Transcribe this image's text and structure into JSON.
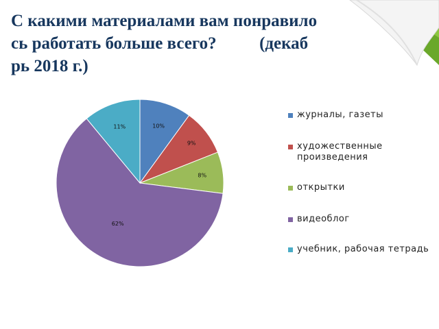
{
  "title_lines": [
    "С какими материалами вам понравило",
    "сь работать больше всего?          (декаб",
    "рь 2018 г.)"
  ],
  "chart_data": {
    "type": "pie",
    "title": "С какими материалами вам понравилось работать больше всего? (декабрь 2018 г.)",
    "categories": [
      "журналы, газеты",
      "художественные произведения",
      "открытки",
      "видеоблог",
      "учебник, рабочая тетрадь"
    ],
    "values": [
      10,
      9,
      8,
      62,
      11
    ],
    "data_labels": [
      "10%",
      "9%",
      "8%",
      "62%",
      "11%"
    ],
    "colors": [
      "#4f81bd",
      "#c0504d",
      "#9bbb59",
      "#8064a2",
      "#4bacc6"
    ],
    "legend_position": "right"
  }
}
